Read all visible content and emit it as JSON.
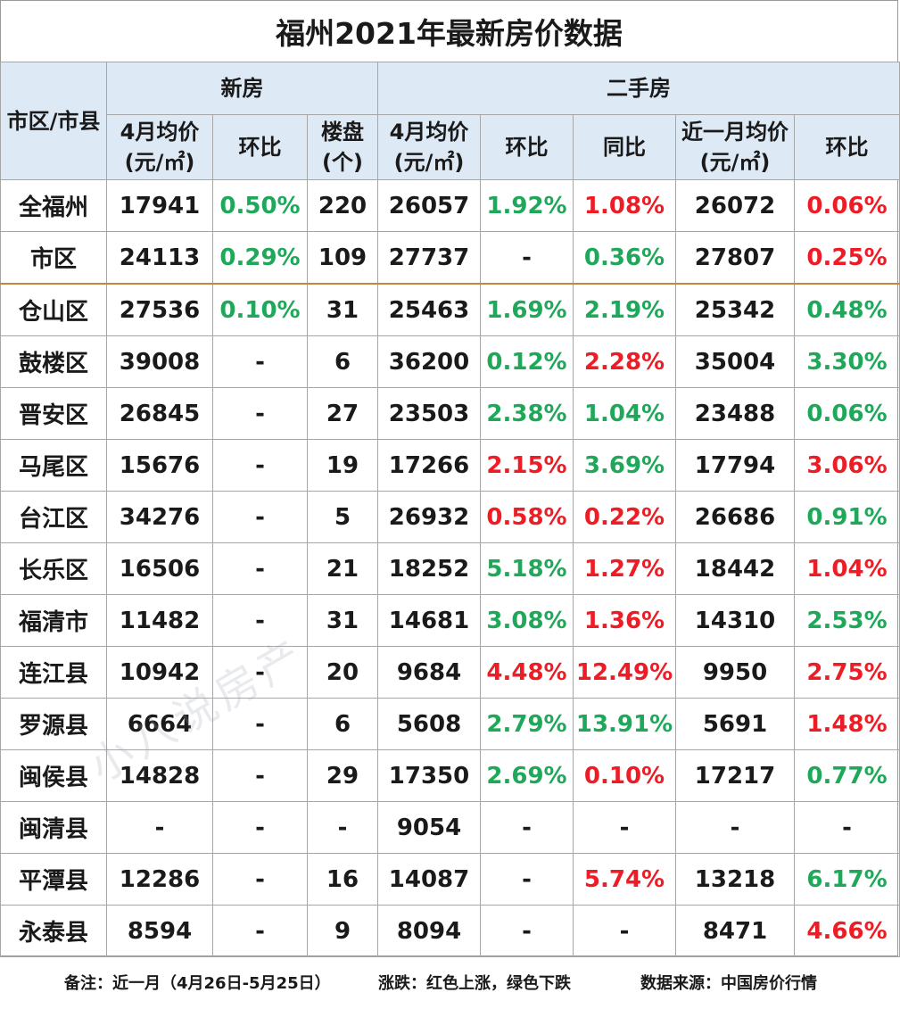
{
  "title": "福州2021年最新房价数据",
  "header": {
    "district": "市区/市县",
    "new_house": "新房",
    "second_hand": "二手房",
    "new_avg_price": "4月均价(元/㎡)",
    "new_mom": "环比",
    "new_projects": "楼盘(个)",
    "sh_avg_price": "4月均价(元/㎡)",
    "sh_mom": "环比",
    "sh_yoy": "同比",
    "sh_month_avg": "近一月均价(元/㎡)",
    "sh_month_mom": "环比"
  },
  "colors": {
    "rise": "#ee1c25",
    "fall": "#1fa85a",
    "header_bg": "#dde9f5",
    "divider": "#c7843f"
  },
  "rows": [
    {
      "name": "全福州",
      "new_avg": "17941",
      "new_mom": "0.50%",
      "new_mom_c": "g",
      "projects": "220",
      "sh_avg": "26057",
      "sh_mom": "1.92%",
      "sh_mom_c": "g",
      "sh_yoy": "1.08%",
      "sh_yoy_c": "r",
      "m_avg": "26072",
      "m_mom": "0.06%",
      "m_mom_c": "r"
    },
    {
      "name": "市区",
      "new_avg": "24113",
      "new_mom": "0.29%",
      "new_mom_c": "g",
      "projects": "109",
      "sh_avg": "27737",
      "sh_mom": "-",
      "sh_mom_c": "k",
      "sh_yoy": "0.36%",
      "sh_yoy_c": "g",
      "m_avg": "27807",
      "m_mom": "0.25%",
      "m_mom_c": "r"
    },
    {
      "name": "仓山区",
      "new_avg": "27536",
      "new_mom": "0.10%",
      "new_mom_c": "g",
      "projects": "31",
      "sh_avg": "25463",
      "sh_mom": "1.69%",
      "sh_mom_c": "g",
      "sh_yoy": "2.19%",
      "sh_yoy_c": "g",
      "m_avg": "25342",
      "m_mom": "0.48%",
      "m_mom_c": "g"
    },
    {
      "name": "鼓楼区",
      "new_avg": "39008",
      "new_mom": "-",
      "new_mom_c": "k",
      "projects": "6",
      "sh_avg": "36200",
      "sh_mom": "0.12%",
      "sh_mom_c": "g",
      "sh_yoy": "2.28%",
      "sh_yoy_c": "r",
      "m_avg": "35004",
      "m_mom": "3.30%",
      "m_mom_c": "g"
    },
    {
      "name": "晋安区",
      "new_avg": "26845",
      "new_mom": "-",
      "new_mom_c": "k",
      "projects": "27",
      "sh_avg": "23503",
      "sh_mom": "2.38%",
      "sh_mom_c": "g",
      "sh_yoy": "1.04%",
      "sh_yoy_c": "g",
      "m_avg": "23488",
      "m_mom": "0.06%",
      "m_mom_c": "g"
    },
    {
      "name": "马尾区",
      "new_avg": "15676",
      "new_mom": "-",
      "new_mom_c": "k",
      "projects": "19",
      "sh_avg": "17266",
      "sh_mom": "2.15%",
      "sh_mom_c": "r",
      "sh_yoy": "3.69%",
      "sh_yoy_c": "g",
      "m_avg": "17794",
      "m_mom": "3.06%",
      "m_mom_c": "r"
    },
    {
      "name": "台江区",
      "new_avg": "34276",
      "new_mom": "-",
      "new_mom_c": "k",
      "projects": "5",
      "sh_avg": "26932",
      "sh_mom": "0.58%",
      "sh_mom_c": "r",
      "sh_yoy": "0.22%",
      "sh_yoy_c": "r",
      "m_avg": "26686",
      "m_mom": "0.91%",
      "m_mom_c": "g"
    },
    {
      "name": "长乐区",
      "new_avg": "16506",
      "new_mom": "-",
      "new_mom_c": "k",
      "projects": "21",
      "sh_avg": "18252",
      "sh_mom": "5.18%",
      "sh_mom_c": "g",
      "sh_yoy": "1.27%",
      "sh_yoy_c": "r",
      "m_avg": "18442",
      "m_mom": "1.04%",
      "m_mom_c": "r"
    },
    {
      "name": "福清市",
      "new_avg": "11482",
      "new_mom": "-",
      "new_mom_c": "k",
      "projects": "31",
      "sh_avg": "14681",
      "sh_mom": "3.08%",
      "sh_mom_c": "g",
      "sh_yoy": "1.36%",
      "sh_yoy_c": "r",
      "m_avg": "14310",
      "m_mom": "2.53%",
      "m_mom_c": "g"
    },
    {
      "name": "连江县",
      "new_avg": "10942",
      "new_mom": "-",
      "new_mom_c": "k",
      "projects": "20",
      "sh_avg": "9684",
      "sh_mom": "4.48%",
      "sh_mom_c": "r",
      "sh_yoy": "12.49%",
      "sh_yoy_c": "r",
      "m_avg": "9950",
      "m_mom": "2.75%",
      "m_mom_c": "r"
    },
    {
      "name": "罗源县",
      "new_avg": "6664",
      "new_mom": "-",
      "new_mom_c": "k",
      "projects": "6",
      "sh_avg": "5608",
      "sh_mom": "2.79%",
      "sh_mom_c": "g",
      "sh_yoy": "13.91%",
      "sh_yoy_c": "g",
      "m_avg": "5691",
      "m_mom": "1.48%",
      "m_mom_c": "r"
    },
    {
      "name": "闽侯县",
      "new_avg": "14828",
      "new_mom": "-",
      "new_mom_c": "k",
      "projects": "29",
      "sh_avg": "17350",
      "sh_mom": "2.69%",
      "sh_mom_c": "g",
      "sh_yoy": "0.10%",
      "sh_yoy_c": "r",
      "m_avg": "17217",
      "m_mom": "0.77%",
      "m_mom_c": "g"
    },
    {
      "name": "闽清县",
      "new_avg": "-",
      "new_mom": "-",
      "new_mom_c": "k",
      "projects": "-",
      "sh_avg": "9054",
      "sh_mom": "-",
      "sh_mom_c": "k",
      "sh_yoy": "-",
      "sh_yoy_c": "k",
      "m_avg": "-",
      "m_mom": "-",
      "m_mom_c": "k"
    },
    {
      "name": "平潭县",
      "new_avg": "12286",
      "new_mom": "-",
      "new_mom_c": "k",
      "projects": "16",
      "sh_avg": "14087",
      "sh_mom": "-",
      "sh_mom_c": "k",
      "sh_yoy": "5.74%",
      "sh_yoy_c": "r",
      "m_avg": "13218",
      "m_mom": "6.17%",
      "m_mom_c": "g"
    },
    {
      "name": "永泰县",
      "new_avg": "8594",
      "new_mom": "-",
      "new_mom_c": "k",
      "projects": "9",
      "sh_avg": "8094",
      "sh_mom": "-",
      "sh_mom_c": "k",
      "sh_yoy": "-",
      "sh_yoy_c": "k",
      "m_avg": "8471",
      "m_mom": "4.66%",
      "m_mom_c": "r"
    }
  ],
  "footer": {
    "note": "备注：近一月（4月26日-5月25日）",
    "legend": "涨跌：红色上涨，绿色下跌",
    "source": "数据来源：中国房价行情"
  },
  "watermark": "小八说房产"
}
